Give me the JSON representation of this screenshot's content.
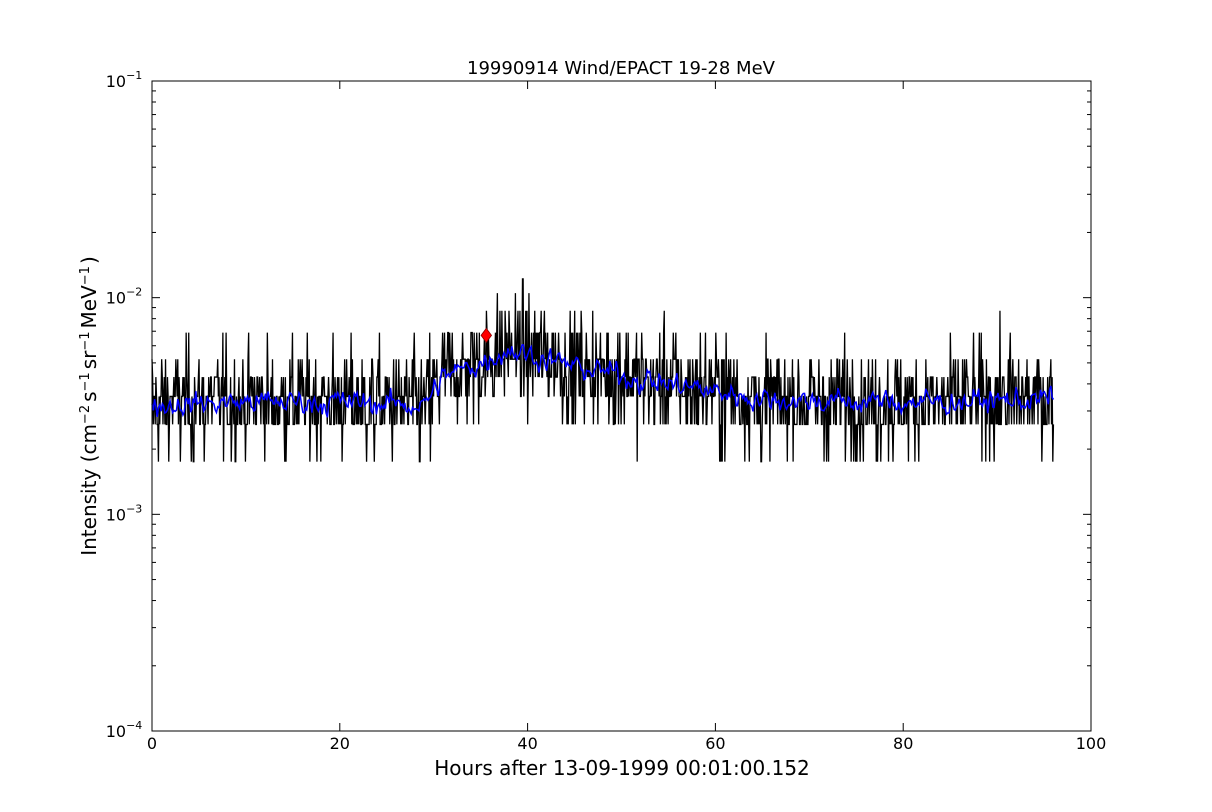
{
  "chart_data": {
    "type": "line",
    "title": "19990914 Wind/EPACT 19-28 MeV",
    "xlabel": "Hours after 13-09-1999 00:01:00.152",
    "ylabel": "Intensity (cm⁻² s⁻¹ sr⁻¹ MeV⁻¹)",
    "ylabel_parts": {
      "lead": "Intensity (cm",
      "sup1": "−2",
      "s": "s",
      "sup2": "−1",
      "sr": "sr",
      "sup3": "−1",
      "mev": "MeV",
      "sup4": "−1",
      "tail": ")"
    },
    "xlim": [
      0,
      100
    ],
    "ylim": [
      0.0001,
      0.1
    ],
    "y_scale": "log",
    "x_ticks": [
      {
        "value": 0,
        "label": "0"
      },
      {
        "value": 20,
        "label": "20"
      },
      {
        "value": 40,
        "label": "40"
      },
      {
        "value": 60,
        "label": "60"
      },
      {
        "value": 80,
        "label": "80"
      },
      {
        "value": 100,
        "label": "100"
      }
    ],
    "y_ticks": [
      {
        "value": 0.0001,
        "base": "10",
        "exp": "−4"
      },
      {
        "value": 0.001,
        "base": "10",
        "exp": "−3"
      },
      {
        "value": 0.01,
        "base": "10",
        "exp": "−2"
      },
      {
        "value": 0.1,
        "base": "10",
        "exp": "−1"
      }
    ],
    "grid": false,
    "series": [
      {
        "role": "raw intensity",
        "color": "#000000",
        "x_range": [
          0,
          96
        ],
        "count_levels": [
          0.00088,
          0.00175,
          0.0026,
          0.0035,
          0.0043,
          0.0052,
          0.0069,
          0.0087,
          0.0105,
          0.0122
        ],
        "profile": [
          {
            "x": 0,
            "y": 0.0032
          },
          {
            "x": 10,
            "y": 0.0033
          },
          {
            "x": 20,
            "y": 0.0033
          },
          {
            "x": 29,
            "y": 0.0032
          },
          {
            "x": 31,
            "y": 0.0043
          },
          {
            "x": 35,
            "y": 0.005
          },
          {
            "x": 38,
            "y": 0.0058
          },
          {
            "x": 45,
            "y": 0.0048
          },
          {
            "x": 55,
            "y": 0.004
          },
          {
            "x": 65,
            "y": 0.0034
          },
          {
            "x": 75,
            "y": 0.0033
          },
          {
            "x": 85,
            "y": 0.0033
          },
          {
            "x": 96,
            "y": 0.0034
          }
        ]
      },
      {
        "role": "smoothed intensity",
        "color": "#0000ff",
        "x_range": [
          0,
          96
        ],
        "profile": [
          {
            "x": 0,
            "y": 0.0032
          },
          {
            "x": 10,
            "y": 0.0033
          },
          {
            "x": 20,
            "y": 0.0033
          },
          {
            "x": 29,
            "y": 0.0032
          },
          {
            "x": 31,
            "y": 0.0043
          },
          {
            "x": 35,
            "y": 0.005
          },
          {
            "x": 38,
            "y": 0.0058
          },
          {
            "x": 45,
            "y": 0.0048
          },
          {
            "x": 55,
            "y": 0.004
          },
          {
            "x": 65,
            "y": 0.0034
          },
          {
            "x": 75,
            "y": 0.0033
          },
          {
            "x": 85,
            "y": 0.0033
          },
          {
            "x": 96,
            "y": 0.0034
          }
        ]
      }
    ],
    "marker": {
      "shape": "diamond",
      "color": "#ff0000",
      "x": 35.6,
      "y": 0.0067
    }
  }
}
